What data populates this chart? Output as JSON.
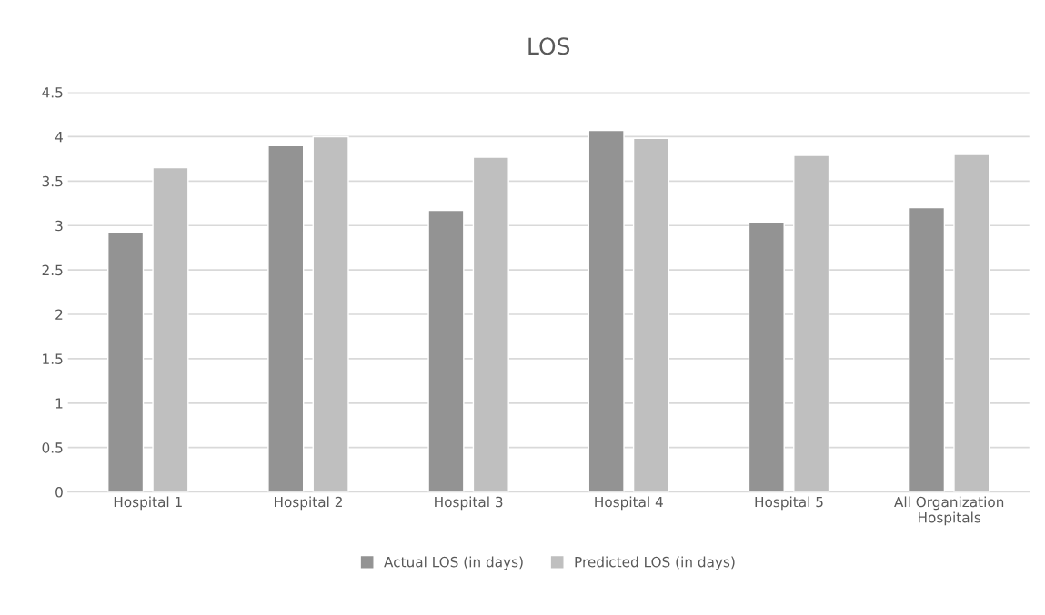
{
  "chart_data": {
    "type": "bar",
    "title": "LOS",
    "categories": [
      "Hospital 1",
      "Hospital 2",
      "Hospital 3",
      "Hospital 4",
      "Hospital 5",
      "All Organization\nHospitals"
    ],
    "series": [
      {
        "name": "Actual LOS (in days)",
        "color": "#939393",
        "values": [
          2.92,
          3.9,
          3.17,
          4.07,
          3.03,
          3.2
        ]
      },
      {
        "name": "Predicted LOS (in days)",
        "color": "#bfbfbf",
        "values": [
          3.65,
          4.0,
          3.77,
          3.98,
          3.79,
          3.8
        ]
      }
    ],
    "ylim": [
      0,
      4.5
    ],
    "yticks": [
      0,
      0.5,
      1,
      1.5,
      2,
      2.5,
      3,
      3.5,
      4,
      4.5
    ],
    "grid": "y",
    "legend": "bottom"
  }
}
